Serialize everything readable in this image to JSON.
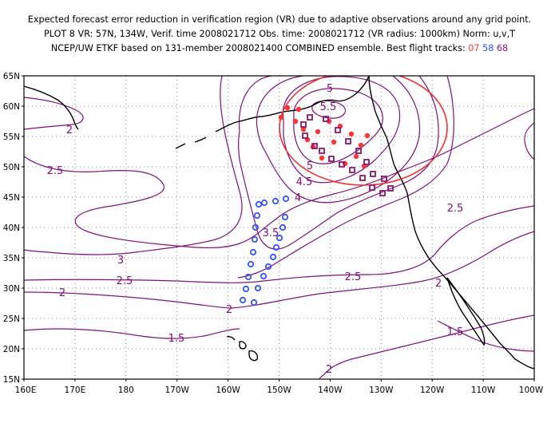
{
  "header": {
    "line1": "Expected forecast error reduction in verification region (VR) due to adaptive observations around any grid point.",
    "line2": "PLOT 8 VR: 57N, 134W, Verif. time 2008021712 Obs. time: 2008021712 (VR radius: 1000km) Norm: u,v,T",
    "line3_prefix": "NCEP/UW ETKF based on 131-member 2008021400 COMBINED ensemble.  Best flight tracks: ",
    "tracks": [
      {
        "id": "07",
        "color": "#ff3333"
      },
      {
        "id": "58",
        "color": "#3355ff"
      },
      {
        "id": "68",
        "color": "#8b1a6b"
      }
    ]
  },
  "axes": {
    "lat_labels": [
      "65N",
      "60N",
      "55N",
      "50N",
      "45N",
      "40N",
      "35N",
      "30N",
      "25N",
      "20N",
      "15N"
    ],
    "lon_labels": [
      "160E",
      "170E",
      "180",
      "170W",
      "160W",
      "150W",
      "140W",
      "130W",
      "120W",
      "110W",
      "100W"
    ]
  },
  "contour_labels": [
    "5",
    "5.5",
    "5",
    "4.5",
    "4",
    "3.5",
    "3",
    "2.5",
    "2.5",
    "2.5",
    "2.5",
    "2",
    "2",
    "2",
    "2",
    "2",
    "1.5",
    "1.5"
  ],
  "colors": {
    "contour": "#80107a",
    "coast": "#000000",
    "vr_circle": "#ee3333",
    "grid": "#888888"
  },
  "verification_region": {
    "lat": 57,
    "lon": -134,
    "radius_km": 1000
  }
}
